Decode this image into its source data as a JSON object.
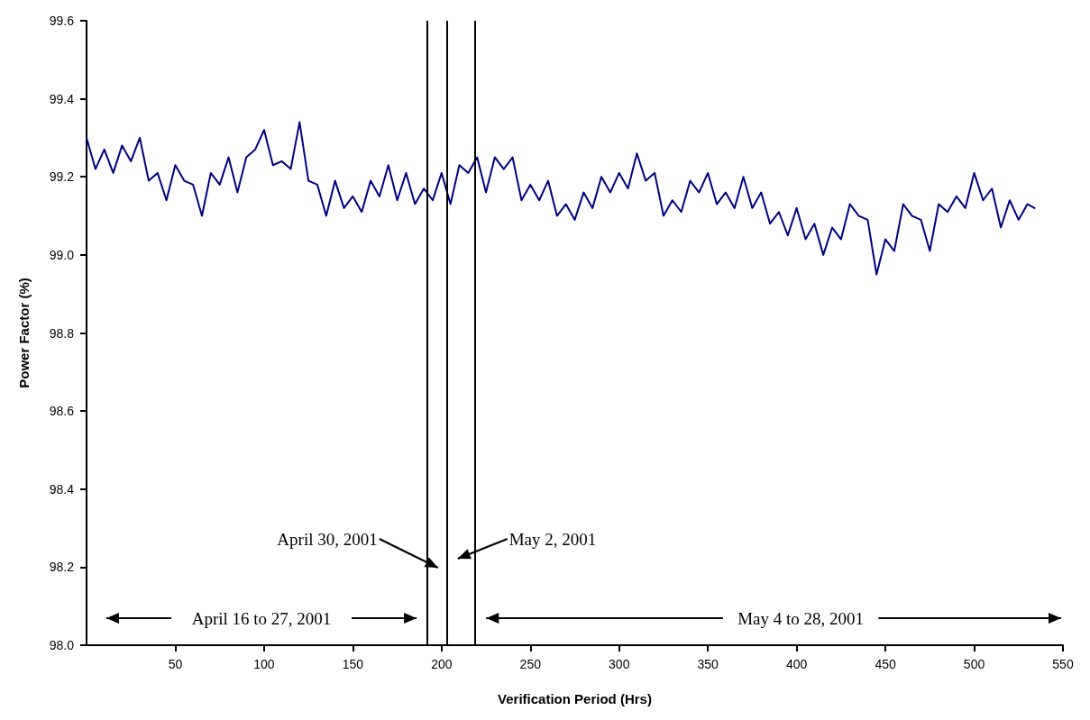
{
  "chart_data": {
    "type": "line",
    "xlabel": "Verification Period (Hrs)",
    "ylabel": "Power Factor (%)",
    "x": [
      0,
      5,
      10,
      15,
      20,
      25,
      30,
      35,
      40,
      45,
      50,
      55,
      60,
      65,
      70,
      75,
      80,
      85,
      90,
      95,
      100,
      105,
      110,
      115,
      120,
      125,
      130,
      135,
      140,
      145,
      150,
      155,
      160,
      165,
      170,
      175,
      180,
      185,
      190,
      195,
      200,
      205,
      210,
      215,
      220,
      225,
      230,
      235,
      240,
      245,
      250,
      255,
      260,
      265,
      270,
      275,
      280,
      285,
      290,
      295,
      300,
      305,
      310,
      315,
      320,
      325,
      330,
      335,
      340,
      345,
      350,
      355,
      360,
      365,
      370,
      375,
      380,
      385,
      390,
      395,
      400,
      405,
      410,
      415,
      420,
      425,
      430,
      435,
      440,
      445,
      450,
      455,
      460,
      465,
      470,
      475,
      480,
      485,
      490,
      495,
      500,
      505,
      510,
      515,
      520,
      525,
      530,
      534
    ],
    "series": [
      {
        "color": "#000080",
        "values": [
          99.3,
          99.22,
          99.27,
          99.21,
          99.28,
          99.24,
          99.3,
          99.19,
          99.21,
          99.14,
          99.23,
          99.19,
          99.18,
          99.1,
          99.21,
          99.18,
          99.25,
          99.16,
          99.25,
          99.27,
          99.32,
          99.23,
          99.24,
          99.22,
          99.34,
          99.19,
          99.18,
          99.1,
          99.19,
          99.12,
          99.15,
          99.11,
          99.19,
          99.15,
          99.23,
          99.14,
          99.21,
          99.13,
          99.17,
          99.14,
          99.21,
          99.13,
          99.23,
          99.21,
          99.25,
          99.16,
          99.25,
          99.22,
          99.25,
          99.14,
          99.18,
          99.14,
          99.19,
          99.1,
          99.13,
          99.09,
          99.16,
          99.12,
          99.2,
          99.16,
          99.21,
          99.17,
          99.26,
          99.19,
          99.21,
          99.1,
          99.14,
          99.11,
          99.19,
          99.16,
          99.21,
          99.13,
          99.16,
          99.12,
          99.2,
          99.12,
          99.16,
          99.08,
          99.11,
          99.05,
          99.12,
          99.04,
          99.08,
          99.0,
          99.07,
          99.04,
          99.13,
          99.1,
          99.09,
          98.95,
          99.04,
          99.01,
          99.13,
          99.1,
          99.09,
          99.01,
          99.13,
          99.11,
          99.15,
          99.12,
          99.21,
          99.14,
          99.17,
          99.07,
          99.14,
          99.09,
          99.13,
          99.12
        ]
      }
    ],
    "xlim": [
      0,
      550
    ],
    "xticks": [
      50,
      100,
      150,
      200,
      250,
      300,
      350,
      400,
      450,
      500,
      550
    ],
    "ylim": [
      98.0,
      99.6
    ],
    "yticks": [
      {
        "value": 98,
        "label": "98.0"
      },
      98.2,
      98.4,
      98.6,
      98.8,
      {
        "value": 99,
        "label": "99.0"
      },
      99.2,
      99.4,
      99.6
    ],
    "grid": false,
    "marker": "none",
    "line_style": "solid",
    "ref_lines": [
      {
        "axis": "x",
        "value": 192,
        "color": "#000000"
      },
      {
        "axis": "x",
        "value": 203,
        "color": "#000000"
      },
      {
        "axis": "x",
        "value": 219,
        "color": "#000000"
      }
    ],
    "annotations": [
      "April 16 to 27, 2001",
      "April 30, 2001",
      "May 2, 2001",
      "May 4 to 28, 2001"
    ]
  }
}
